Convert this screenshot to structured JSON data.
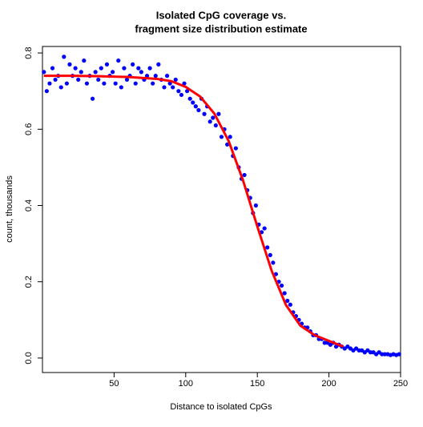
{
  "chart_data": {
    "type": "scatter",
    "title": [
      "Isolated CpG coverage vs.",
      "fragment size distribution estimate"
    ],
    "x_label": "Distance to isolated CpGs",
    "y_label": "count, thousands",
    "xlim": [
      0,
      250
    ],
    "ylim": [
      -0.038,
      0.817
    ],
    "xticks": [
      50,
      100,
      150,
      200,
      250
    ],
    "yticks": [
      {
        "value": 0,
        "label": "0.0"
      },
      0.2,
      0.4,
      0.6,
      0.8
    ],
    "series": [
      {
        "type": "scatter",
        "color": "#0000ff",
        "x": [
          1,
          3,
          5,
          7,
          9,
          11,
          13,
          15,
          17,
          19,
          21,
          23,
          25,
          27,
          29,
          31,
          33,
          35,
          37,
          39,
          41,
          43,
          45,
          47,
          49,
          51,
          53,
          55,
          57,
          59,
          61,
          63,
          65,
          67,
          69,
          71,
          73,
          75,
          77,
          79,
          81,
          83,
          85,
          87,
          89,
          91,
          93,
          95,
          97,
          99,
          101,
          103,
          105,
          107,
          109,
          111,
          113,
          115,
          117,
          119,
          121,
          123,
          125,
          127,
          129,
          131,
          133,
          135,
          137,
          139,
          141,
          143,
          145,
          147,
          149,
          151,
          153,
          155,
          157,
          159,
          161,
          163,
          165,
          167,
          169,
          171,
          173,
          175,
          177,
          179,
          181,
          183,
          185,
          187,
          189,
          191,
          193,
          195,
          197,
          199,
          201,
          203,
          205,
          207,
          209,
          211,
          213,
          215,
          217,
          219,
          221,
          223,
          225,
          227,
          229,
          231,
          233,
          235,
          237,
          239,
          241,
          243,
          245,
          247,
          249
        ],
        "values": [
          0.75,
          0.7,
          0.72,
          0.76,
          0.73,
          0.74,
          0.71,
          0.79,
          0.72,
          0.77,
          0.74,
          0.76,
          0.73,
          0.75,
          0.78,
          0.72,
          0.74,
          0.68,
          0.75,
          0.73,
          0.76,
          0.72,
          0.77,
          0.74,
          0.75,
          0.72,
          0.78,
          0.71,
          0.76,
          0.73,
          0.74,
          0.77,
          0.72,
          0.76,
          0.75,
          0.73,
          0.74,
          0.76,
          0.72,
          0.74,
          0.77,
          0.73,
          0.71,
          0.74,
          0.72,
          0.71,
          0.73,
          0.7,
          0.69,
          0.72,
          0.7,
          0.68,
          0.67,
          0.66,
          0.65,
          0.68,
          0.64,
          0.66,
          0.62,
          0.63,
          0.61,
          0.64,
          0.58,
          0.6,
          0.56,
          0.58,
          0.53,
          0.55,
          0.5,
          0.47,
          0.48,
          0.44,
          0.42,
          0.38,
          0.4,
          0.35,
          0.33,
          0.34,
          0.29,
          0.27,
          0.25,
          0.22,
          0.2,
          0.19,
          0.17,
          0.15,
          0.14,
          0.12,
          0.11,
          0.1,
          0.09,
          0.08,
          0.08,
          0.07,
          0.06,
          0.06,
          0.05,
          0.05,
          0.04,
          0.04,
          0.035,
          0.04,
          0.03,
          0.035,
          0.03,
          0.025,
          0.03,
          0.025,
          0.02,
          0.025,
          0.02,
          0.02,
          0.015,
          0.02,
          0.015,
          0.015,
          0.01,
          0.015,
          0.01,
          0.01,
          0.01,
          0.008,
          0.01,
          0.008,
          0.01
        ]
      },
      {
        "type": "line",
        "color": "#ff0000",
        "x": [
          1,
          20,
          40,
          60,
          80,
          90,
          100,
          110,
          120,
          130,
          140,
          150,
          160,
          170,
          180,
          190,
          200,
          210
        ],
        "values": [
          0.74,
          0.74,
          0.739,
          0.737,
          0.732,
          0.726,
          0.711,
          0.686,
          0.641,
          0.569,
          0.466,
          0.345,
          0.229,
          0.139,
          0.085,
          0.06,
          0.045,
          0.03
        ]
      }
    ]
  }
}
